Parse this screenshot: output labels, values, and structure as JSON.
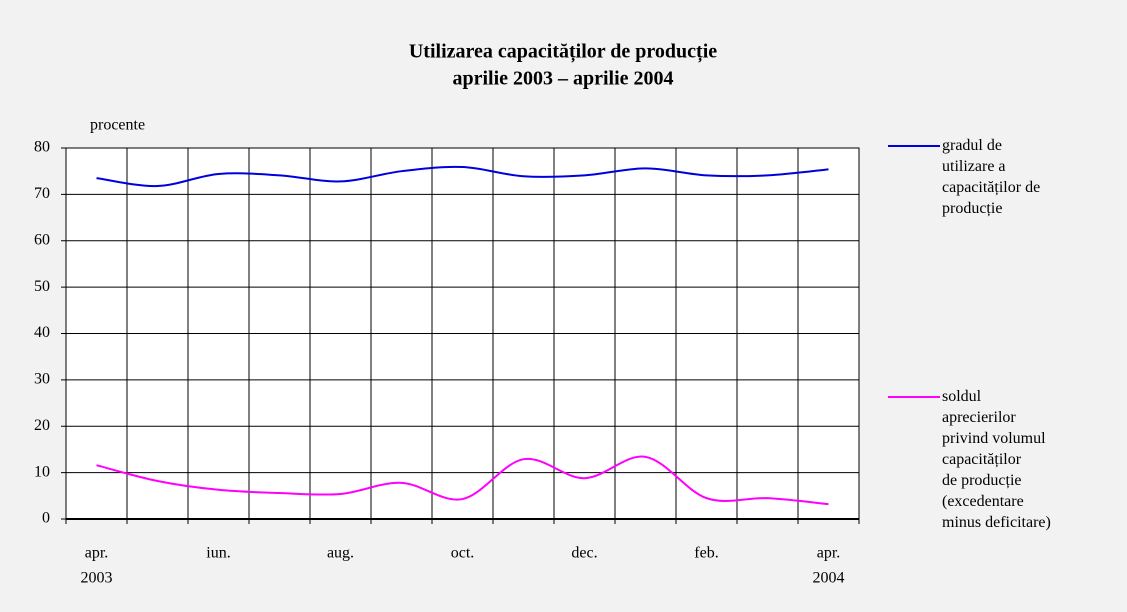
{
  "chart_data": {
    "type": "line",
    "title": "Utilizarea capacităților de producție",
    "subtitle": "aprilie 2003 – aprilie 2004",
    "y_label": "procente",
    "categories": [
      "apr.",
      null,
      "iun.",
      null,
      "aug.",
      null,
      "oct.",
      null,
      "dec.",
      null,
      "feb.",
      null,
      "apr."
    ],
    "category_years": [
      "2003",
      null,
      null,
      null,
      null,
      null,
      null,
      null,
      null,
      null,
      null,
      null,
      "2004"
    ],
    "smooth": true,
    "series": [
      {
        "name": "gradul de\nutilizare a\ncapacităților de\nproducție",
        "color": "#0000dd",
        "values": [
          73.5,
          71.8,
          74.4,
          74.1,
          72.8,
          75.0,
          75.9,
          73.9,
          74.1,
          75.6,
          74.1,
          74.1,
          75.4
        ]
      },
      {
        "name": "soldul\naprecierilor\nprivind volumul\ncapacităților\nde producție\n(excedentare\nminus deficitare)",
        "color": "#ff00ff",
        "values": [
          11.6,
          8.2,
          6.3,
          5.6,
          5.4,
          7.8,
          4.3,
          12.9,
          8.8,
          13.4,
          4.5,
          4.5,
          3.2
        ]
      }
    ],
    "ylim": [
      0,
      80
    ],
    "yticks": [
      0,
      10,
      20,
      30,
      40,
      50,
      60,
      70,
      80
    ],
    "grid": true
  }
}
